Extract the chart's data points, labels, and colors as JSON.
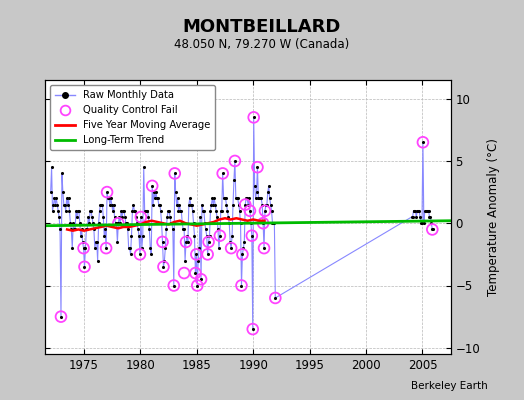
{
  "title": "MONTBEILLARD",
  "subtitle": "48.050 N, 79.270 W (Canada)",
  "ylabel": "Temperature Anomaly (°C)",
  "credit": "Berkeley Earth",
  "xlim": [
    1971.5,
    2007.5
  ],
  "ylim": [
    -10.5,
    11.5
  ],
  "yticks": [
    -10,
    -5,
    0,
    5,
    10
  ],
  "xticks": [
    1975,
    1980,
    1985,
    1990,
    1995,
    2000,
    2005
  ],
  "bg_color": "#c8c8c8",
  "plot_bg_color": "#ffffff",
  "grid_color": "#b8b8b8",
  "raw_line_color": "#8888ff",
  "raw_dot_color": "#000000",
  "qc_marker_color": "#ff44ff",
  "moving_avg_color": "#ff0000",
  "trend_color": "#00bb00",
  "raw_data": {
    "t": [
      1972.042,
      1972.125,
      1972.208,
      1972.292,
      1972.375,
      1972.458,
      1972.542,
      1972.625,
      1972.708,
      1972.792,
      1972.875,
      1972.958,
      1973.042,
      1973.125,
      1973.208,
      1973.292,
      1973.375,
      1973.458,
      1973.542,
      1973.625,
      1973.708,
      1973.792,
      1973.875,
      1973.958,
      1974.042,
      1974.125,
      1974.208,
      1974.292,
      1974.375,
      1974.458,
      1974.542,
      1974.625,
      1974.708,
      1974.792,
      1974.875,
      1974.958,
      1975.042,
      1975.125,
      1975.208,
      1975.292,
      1975.375,
      1975.458,
      1975.542,
      1975.625,
      1975.708,
      1975.792,
      1975.875,
      1975.958,
      1976.042,
      1976.125,
      1976.208,
      1976.292,
      1976.375,
      1976.458,
      1976.542,
      1976.625,
      1976.708,
      1976.792,
      1976.875,
      1976.958,
      1977.042,
      1977.125,
      1977.208,
      1977.292,
      1977.375,
      1977.458,
      1977.542,
      1977.625,
      1977.708,
      1977.792,
      1977.875,
      1977.958,
      1978.042,
      1978.125,
      1978.208,
      1978.292,
      1978.375,
      1978.458,
      1978.542,
      1978.625,
      1978.708,
      1978.792,
      1978.875,
      1978.958,
      1979.042,
      1979.125,
      1979.208,
      1979.292,
      1979.375,
      1979.458,
      1979.542,
      1979.625,
      1979.708,
      1979.792,
      1979.875,
      1979.958,
      1980.042,
      1980.125,
      1980.208,
      1980.292,
      1980.375,
      1980.458,
      1980.542,
      1980.625,
      1980.708,
      1980.792,
      1980.875,
      1980.958,
      1981.042,
      1981.125,
      1981.208,
      1981.292,
      1981.375,
      1981.458,
      1981.542,
      1981.625,
      1981.708,
      1981.792,
      1981.875,
      1981.958,
      1982.042,
      1982.125,
      1982.208,
      1982.292,
      1982.375,
      1982.458,
      1982.542,
      1982.625,
      1982.708,
      1982.792,
      1982.875,
      1982.958,
      1983.042,
      1983.125,
      1983.208,
      1983.292,
      1983.375,
      1983.458,
      1983.542,
      1983.625,
      1983.708,
      1983.792,
      1983.875,
      1983.958,
      1984.042,
      1984.125,
      1984.208,
      1984.292,
      1984.375,
      1984.458,
      1984.542,
      1984.625,
      1984.708,
      1984.792,
      1984.875,
      1984.958,
      1985.042,
      1985.125,
      1985.208,
      1985.292,
      1985.375,
      1985.458,
      1985.542,
      1985.625,
      1985.708,
      1985.792,
      1985.875,
      1985.958,
      1986.042,
      1986.125,
      1986.208,
      1986.292,
      1986.375,
      1986.458,
      1986.542,
      1986.625,
      1986.708,
      1986.792,
      1986.875,
      1986.958,
      1987.042,
      1987.125,
      1987.208,
      1987.292,
      1987.375,
      1987.458,
      1987.542,
      1987.625,
      1987.708,
      1987.792,
      1987.875,
      1987.958,
      1988.042,
      1988.125,
      1988.208,
      1988.292,
      1988.375,
      1988.458,
      1988.542,
      1988.625,
      1988.708,
      1988.792,
      1988.875,
      1988.958,
      1989.042,
      1989.125,
      1989.208,
      1989.292,
      1989.375,
      1989.458,
      1989.542,
      1989.625,
      1989.708,
      1989.792,
      1989.875,
      1989.958,
      1990.042,
      1990.125,
      1990.208,
      1990.292,
      1990.375,
      1990.458,
      1990.542,
      1990.625,
      1990.708,
      1990.792,
      1990.875,
      1990.958,
      1991.042,
      1991.125,
      1991.208,
      1991.292,
      1991.375,
      1991.458,
      1991.542,
      1991.625,
      1991.708,
      1991.792,
      1991.875,
      1991.958,
      2004.042,
      2004.125,
      2004.208,
      2004.292,
      2004.375,
      2004.458,
      2004.542,
      2004.625,
      2004.708,
      2004.792,
      2004.875,
      2004.958,
      2005.042,
      2005.125,
      2005.208,
      2005.292,
      2005.375,
      2005.458,
      2005.542,
      2005.625,
      2005.708,
      2005.792,
      2005.875,
      2005.958
    ],
    "v": [
      2.5,
      4.5,
      1.0,
      1.5,
      2.0,
      1.5,
      2.0,
      1.5,
      1.0,
      0.5,
      -0.5,
      -7.5,
      4.0,
      2.5,
      1.5,
      1.5,
      1.0,
      2.0,
      1.5,
      2.0,
      1.0,
      0.0,
      -0.5,
      -2.0,
      0.0,
      -0.5,
      -0.5,
      1.0,
      0.5,
      1.0,
      1.0,
      0.0,
      -1.0,
      -0.5,
      -1.5,
      -2.0,
      -3.5,
      -2.0,
      -0.5,
      -0.5,
      0.5,
      0.0,
      1.0,
      1.0,
      0.5,
      0.0,
      -0.5,
      -2.0,
      -1.5,
      -1.5,
      -3.0,
      0.0,
      1.0,
      1.5,
      1.5,
      1.5,
      0.5,
      -1.0,
      -0.5,
      -2.0,
      2.5,
      2.0,
      2.0,
      1.5,
      2.0,
      1.5,
      1.0,
      1.5,
      0.5,
      0.0,
      0.0,
      -1.5,
      0.0,
      0.5,
      0.0,
      1.0,
      0.5,
      1.0,
      1.0,
      0.5,
      0.0,
      0.0,
      -0.5,
      -2.0,
      -2.0,
      -2.5,
      -1.0,
      1.0,
      1.5,
      1.0,
      1.0,
      0.5,
      0.0,
      -0.5,
      -1.0,
      -2.5,
      0.5,
      -2.0,
      -1.0,
      4.5,
      1.0,
      1.0,
      1.0,
      1.0,
      0.5,
      -0.5,
      -2.0,
      -2.5,
      3.0,
      1.5,
      2.5,
      2.0,
      2.5,
      2.0,
      2.0,
      1.5,
      1.5,
      1.0,
      0.0,
      -1.5,
      -3.5,
      -3.0,
      -2.0,
      -0.5,
      0.5,
      1.0,
      1.0,
      0.5,
      0.0,
      0.0,
      -0.5,
      -5.0,
      4.0,
      2.5,
      1.5,
      2.0,
      1.0,
      1.5,
      1.0,
      1.0,
      0.0,
      -0.5,
      -0.5,
      -3.0,
      -1.5,
      -1.0,
      -1.5,
      1.5,
      2.0,
      1.5,
      1.5,
      1.0,
      0.0,
      -1.0,
      -4.0,
      -2.5,
      -5.0,
      -3.0,
      -2.0,
      0.5,
      -4.5,
      1.5,
      1.0,
      1.0,
      0.0,
      -0.5,
      -1.0,
      -2.5,
      -1.5,
      -1.0,
      1.0,
      1.5,
      2.0,
      1.5,
      2.0,
      1.5,
      1.0,
      0.5,
      -0.5,
      -2.0,
      -1.0,
      1.0,
      1.0,
      4.0,
      2.0,
      2.0,
      2.0,
      1.5,
      1.0,
      0.5,
      0.0,
      -1.5,
      -2.0,
      -1.0,
      1.5,
      3.5,
      5.0,
      2.0,
      2.0,
      2.0,
      1.5,
      1.0,
      0.0,
      -5.0,
      -2.5,
      -2.0,
      -1.5,
      1.5,
      2.0,
      2.0,
      1.5,
      2.0,
      1.0,
      0.0,
      -1.0,
      -8.5,
      8.5,
      3.0,
      2.0,
      2.5,
      4.5,
      2.0,
      2.0,
      2.0,
      2.0,
      1.5,
      0.0,
      -2.0,
      1.0,
      1.5,
      1.5,
      2.5,
      3.0,
      2.0,
      1.5,
      1.0,
      0.0,
      0.0,
      0.0,
      -6.0,
      0.5,
      0.5,
      1.0,
      1.0,
      1.0,
      0.5,
      1.0,
      1.0,
      1.0,
      0.5,
      0.0,
      0.0,
      6.5,
      0.0,
      1.0,
      1.0,
      1.0,
      1.0,
      1.0,
      0.5,
      0.5,
      0.0,
      -0.5,
      -0.5
    ]
  },
  "qc_fails": {
    "t": [
      1972.958,
      1974.958,
      1975.042,
      1976.958,
      1977.042,
      1978.042,
      1979.958,
      1980.042,
      1981.042,
      1981.958,
      1982.042,
      1982.958,
      1983.042,
      1983.875,
      1984.042,
      1984.875,
      1984.958,
      1985.042,
      1985.375,
      1985.958,
      1986.042,
      1987.042,
      1987.292,
      1988.042,
      1988.375,
      1988.958,
      1989.042,
      1989.292,
      1989.708,
      1989.875,
      1989.958,
      1990.042,
      1990.375,
      1990.875,
      1990.958,
      1991.042,
      1991.958,
      2005.042,
      2005.875
    ],
    "v": [
      -7.5,
      -2.0,
      -3.5,
      -2.0,
      2.5,
      0.0,
      -2.5,
      0.5,
      3.0,
      -1.5,
      -3.5,
      -5.0,
      4.0,
      -4.0,
      -1.5,
      -4.0,
      -2.5,
      -5.0,
      -4.5,
      -2.5,
      -1.5,
      -1.0,
      4.0,
      -2.0,
      5.0,
      -5.0,
      -2.5,
      1.5,
      1.0,
      -1.0,
      -8.5,
      8.5,
      4.5,
      0.0,
      -2.0,
      1.0,
      -6.0,
      6.5,
      -0.5
    ]
  },
  "moving_avg": {
    "t": [
      1973.5,
      1974.0,
      1974.5,
      1975.0,
      1975.5,
      1976.0,
      1976.5,
      1977.0,
      1977.5,
      1978.0,
      1978.5,
      1979.0,
      1979.5,
      1980.0,
      1980.5,
      1981.0,
      1981.5,
      1982.0,
      1982.5,
      1983.0,
      1983.5,
      1984.0,
      1984.5,
      1985.0,
      1985.5,
      1986.0,
      1986.5,
      1987.0,
      1987.5,
      1988.0,
      1988.5,
      1989.0,
      1989.5,
      1990.0,
      1990.5,
      1991.0
    ],
    "v": [
      -0.5,
      -0.6,
      -0.5,
      -0.6,
      -0.5,
      -0.4,
      -0.3,
      -0.2,
      -0.3,
      -0.4,
      -0.3,
      -0.3,
      -0.2,
      -0.1,
      0.1,
      0.2,
      0.1,
      0.0,
      -0.1,
      0.1,
      0.2,
      0.0,
      -0.1,
      -0.2,
      -0.1,
      0.0,
      0.1,
      0.3,
      0.4,
      0.3,
      0.4,
      0.3,
      0.2,
      0.3,
      0.2,
      0.2
    ]
  },
  "trend": {
    "t": [
      1971.5,
      2007.5
    ],
    "v": [
      -0.2,
      0.2
    ]
  }
}
